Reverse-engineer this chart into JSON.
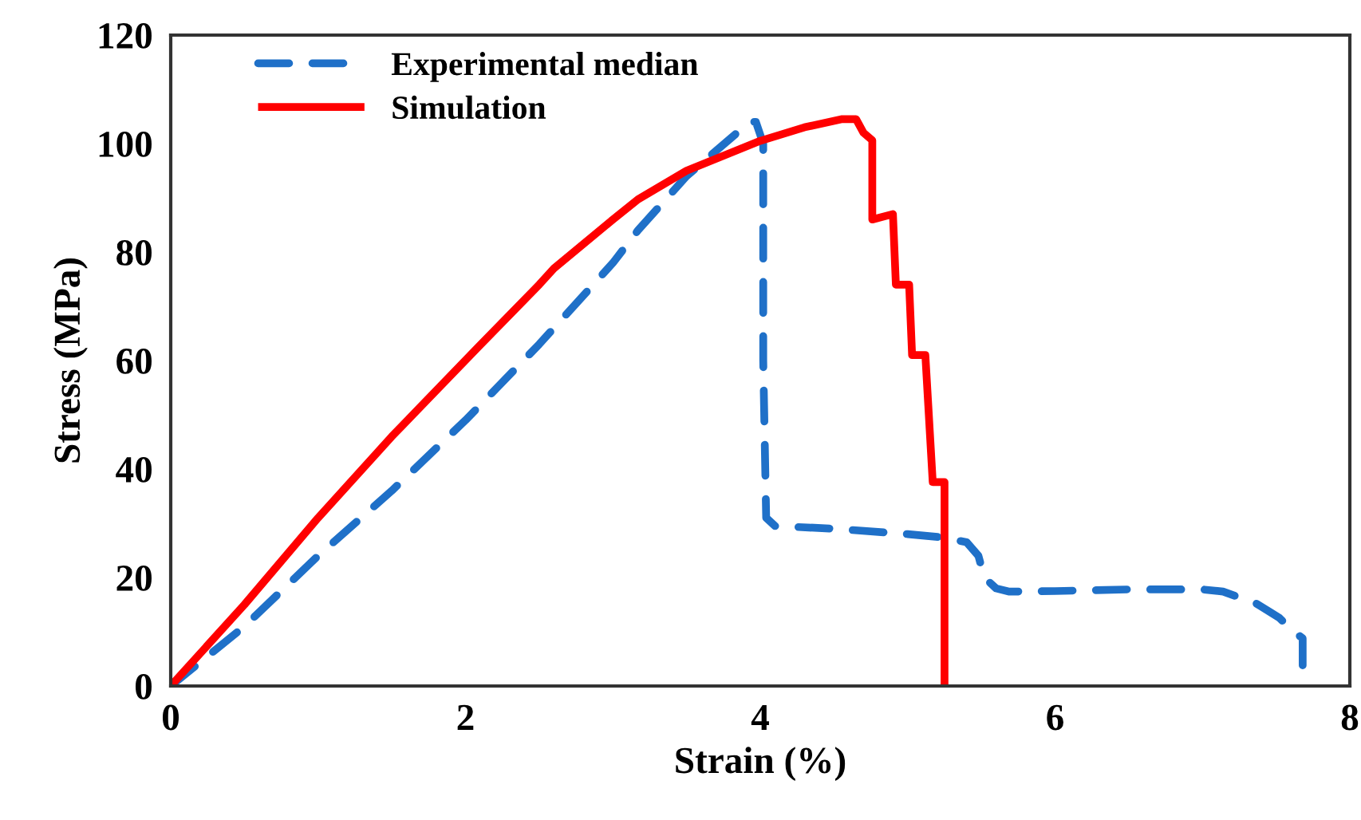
{
  "chart_data": {
    "type": "line",
    "xlabel": "Strain (%)",
    "ylabel": "Stress (MPa)",
    "xlim": [
      0,
      8
    ],
    "ylim": [
      0,
      120
    ],
    "xticks": [
      0,
      2,
      4,
      6,
      8
    ],
    "yticks": [
      0,
      20,
      40,
      60,
      80,
      100,
      120
    ],
    "grid": false,
    "legend": "top left",
    "marker": "none",
    "series": [
      {
        "name": "Experimental median",
        "color": "#1f70c8",
        "line_style": "dashed",
        "x": [
          0,
          0.5,
          1,
          1.5,
          2,
          2.5,
          3,
          3.17,
          3.5,
          3.8,
          3.93,
          3.97,
          4.02,
          4.02,
          4.04,
          4.1,
          4.5,
          5.0,
          5.23,
          5.4,
          5.48,
          5.52,
          5.6,
          5.69,
          6.0,
          6.5,
          7.0,
          7.14,
          7.36,
          7.52,
          7.62,
          7.68,
          7.68
        ],
        "values": [
          0,
          11,
          24,
          36,
          49,
          63,
          78,
          84,
          94,
          101,
          104,
          104,
          100,
          60,
          31,
          29.5,
          29,
          28,
          27.4,
          26.5,
          24,
          20,
          18,
          17.4,
          17.5,
          17.8,
          17.8,
          17.4,
          15.3,
          12.6,
          10,
          8.8,
          3.8
        ]
      },
      {
        "name": "Simulation",
        "color": "#ff0000",
        "line_style": "solid",
        "x": [
          0,
          0.5,
          1,
          1.5,
          2.09,
          2.5,
          2.6,
          3,
          3.17,
          3.5,
          4,
          4.3,
          4.55,
          4.65,
          4.7,
          4.76,
          4.76,
          4.9,
          4.92,
          5.01,
          5.03,
          5.12,
          5.17,
          5.25,
          5.25
        ],
        "values": [
          0,
          15,
          31,
          46,
          62.6,
          74,
          77,
          86,
          89.7,
          95,
          100.5,
          103,
          104.5,
          104.5,
          102,
          100.6,
          86,
          87,
          74,
          74,
          61,
          61,
          37.6,
          37.6,
          0
        ]
      }
    ]
  }
}
